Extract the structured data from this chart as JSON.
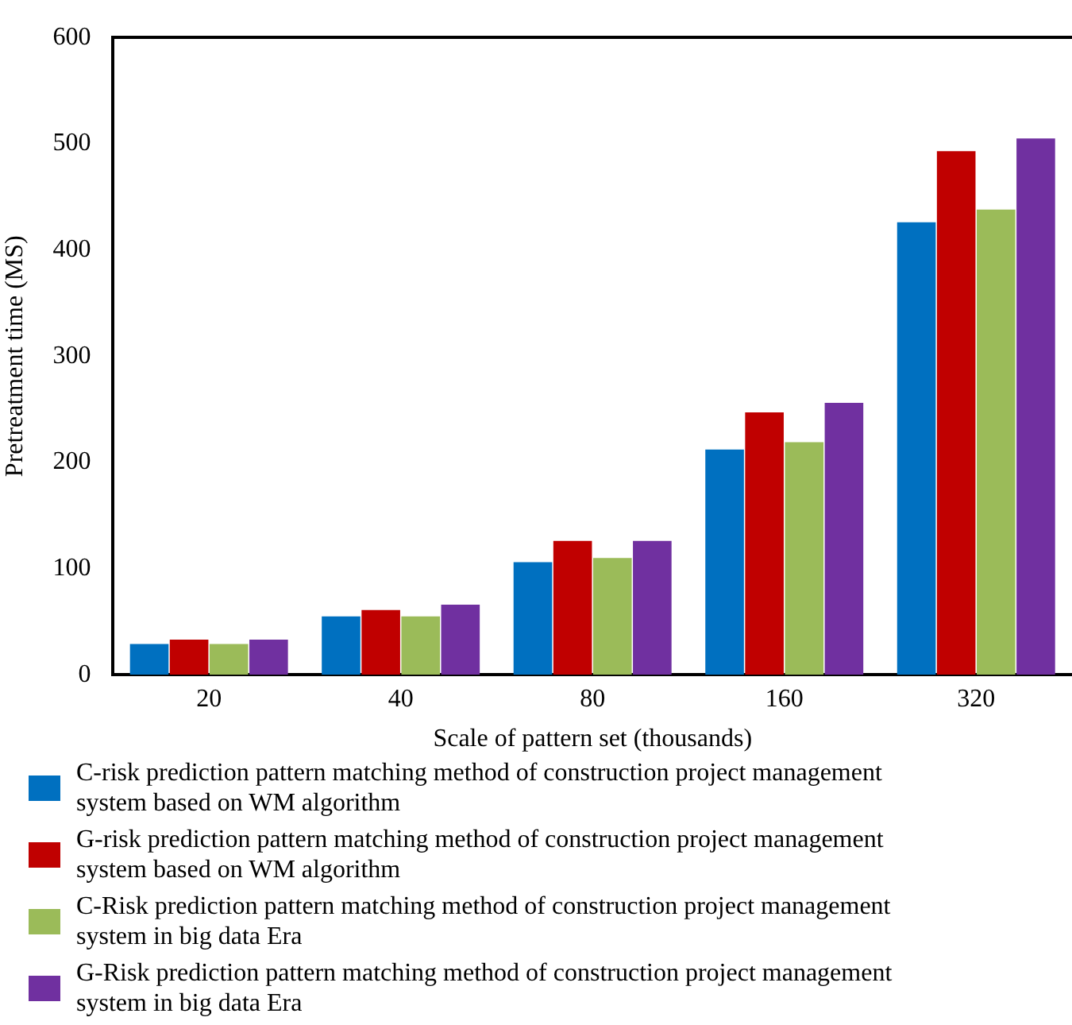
{
  "chart_data": {
    "type": "bar",
    "xlabel": "Scale of pattern set (thousands)",
    "ylabel": "Pretreatment time (MS)",
    "categories": [
      "20",
      "40",
      "80",
      "160",
      "320"
    ],
    "series": [
      {
        "name": "C-risk prediction pattern matching method of construction project management system based on WM algorithm",
        "color": "#0070c0",
        "values": [
          29,
          55,
          106,
          212,
          426
        ]
      },
      {
        "name": "G-risk prediction pattern matching method of construction project management system based on WM algorithm",
        "color": "#c00000",
        "values": [
          33,
          61,
          126,
          247,
          493
        ]
      },
      {
        "name": "C-Risk prediction pattern matching method of construction project management system in big data Era",
        "color": "#9bbb59",
        "values": [
          29,
          55,
          110,
          219,
          438
        ]
      },
      {
        "name": "G-Risk prediction pattern matching method of construction project management system in big data Era",
        "color": "#7030a0",
        "values": [
          33,
          66,
          126,
          256,
          505
        ]
      }
    ],
    "ylim": [
      0,
      600
    ],
    "yticks": [
      0,
      100,
      200,
      300,
      400,
      500,
      600
    ],
    "grid": false,
    "legend": "bottom"
  }
}
